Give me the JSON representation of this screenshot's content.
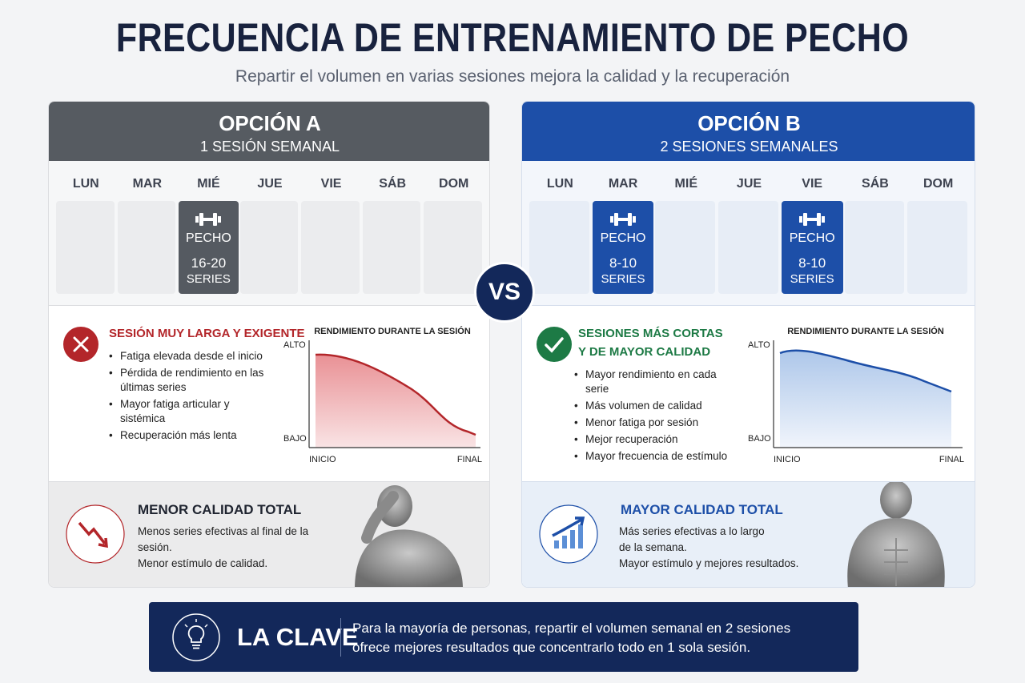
{
  "header": {
    "title": "FRECUENCIA DE ENTRENAMIENTO DE PECHO",
    "subtitle": "Repartir el volumen en varias sesiones mejora la calidad y la recuperación"
  },
  "vs": "VS",
  "options": [
    {
      "title": "OPCIÓN A",
      "subtitle": "1 SESIÓN SEMANAL",
      "days": [
        {
          "label": "LUN"
        },
        {
          "label": "MAR"
        },
        {
          "label": "MIÉ",
          "session": {
            "name": "PECHO",
            "sets": "16-20",
            "unit": "SERIES"
          }
        },
        {
          "label": "JUE"
        },
        {
          "label": "VIE"
        },
        {
          "label": "SÁB"
        },
        {
          "label": "DOM"
        }
      ],
      "verdict": {
        "title_lines": [
          "SESIÓN MUY LARGA Y EXIGENTE"
        ],
        "bullets": [
          "Fatiga elevada desde el inicio",
          "Pérdida de rendimiento en las últimas series",
          "Mayor fatiga articular y sistémica",
          "Recuperación más lenta"
        ]
      },
      "performance_chart": {
        "title": "RENDIMIENTO DURANTE LA SESIÓN",
        "y_high": "ALTO",
        "y_low": "BAJO",
        "x_start": "INICIO",
        "x_end": "FINAL"
      },
      "summary": {
        "title": "MENOR CALIDAD TOTAL",
        "lines": [
          "Menos series efectivas al final de la sesión.",
          "Menor estímulo de calidad."
        ]
      }
    },
    {
      "title": "OPCIÓN B",
      "subtitle": "2 SESIONES SEMANALES",
      "days": [
        {
          "label": "LUN"
        },
        {
          "label": "MAR",
          "session": {
            "name": "PECHO",
            "sets": "8-10",
            "unit": "SERIES"
          }
        },
        {
          "label": "MIÉ"
        },
        {
          "label": "JUE"
        },
        {
          "label": "VIE",
          "session": {
            "name": "PECHO",
            "sets": "8-10",
            "unit": "SERIES"
          }
        },
        {
          "label": "SÁB"
        },
        {
          "label": "DOM"
        }
      ],
      "verdict": {
        "title_lines": [
          "SESIONES MÁS CORTAS",
          "Y DE MAYOR CALIDAD"
        ],
        "bullets": [
          "Mayor rendimiento en cada serie",
          "Más volumen de calidad",
          "Menor fatiga por sesión",
          "Mejor recuperación",
          "Mayor frecuencia de estímulo"
        ]
      },
      "performance_chart": {
        "title": "RENDIMIENTO DURANTE LA SESIÓN",
        "y_high": "ALTO",
        "y_low": "BAJO",
        "x_start": "INICIO",
        "x_end": "FINAL"
      },
      "summary": {
        "title": "MAYOR CALIDAD TOTAL",
        "lines": [
          "Más series efectivas a lo largo",
          "de la semana.",
          "Mayor estímulo y mejores resultados."
        ]
      }
    }
  ],
  "key": {
    "title": "LA CLAVE",
    "lines": [
      "Para la mayoría de personas, repartir el volumen semanal en 2 sesiones",
      "ofrece mejores resultados que concentrarlo todo en 1 sola sesión."
    ]
  }
}
